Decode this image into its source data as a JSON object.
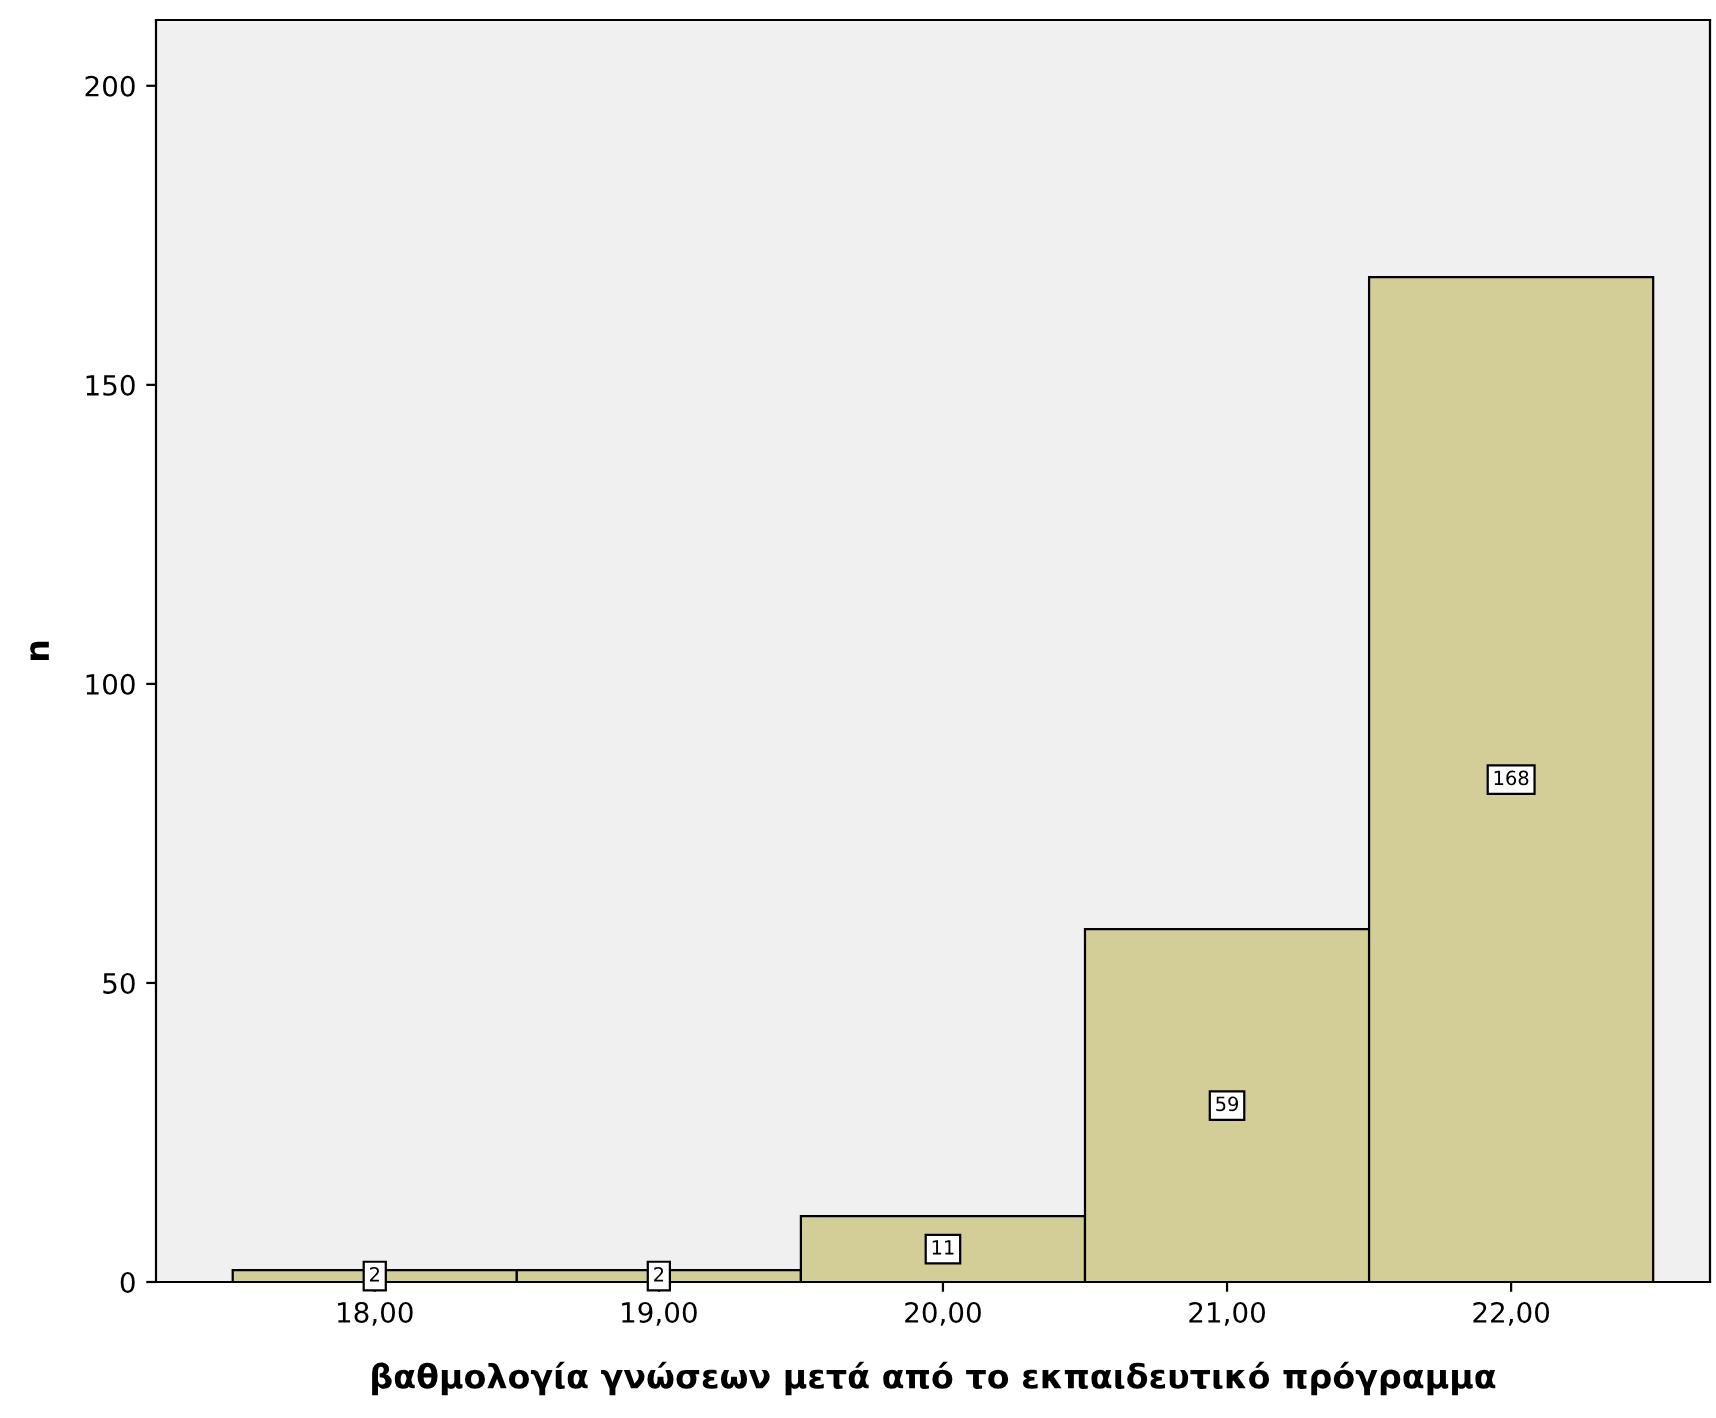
{
  "chart_data": {
    "type": "histogram",
    "xlabel": "βαθμολογία γνώσεων μετά από το εκπαιδευτικό πρόγραμμα",
    "ylabel": "n",
    "bins": [
      17.5,
      18.5,
      19.5,
      20.5,
      21.5,
      22.5
    ],
    "values": [
      2,
      2,
      11,
      59,
      168
    ],
    "color": "#d3ce97",
    "data_labels": true,
    "xlim": [
      17.23,
      22.7
    ],
    "xticks": [
      {
        "value": 18,
        "label": "18,00"
      },
      {
        "value": 19,
        "label": "19,00"
      },
      {
        "value": 20,
        "label": "20,00"
      },
      {
        "value": 21,
        "label": "21,00"
      },
      {
        "value": 22,
        "label": "22,00"
      }
    ],
    "ylim": [
      0,
      211
    ],
    "yticks": [
      0,
      50,
      100,
      150,
      200
    ],
    "grid": false,
    "legend": false
  }
}
